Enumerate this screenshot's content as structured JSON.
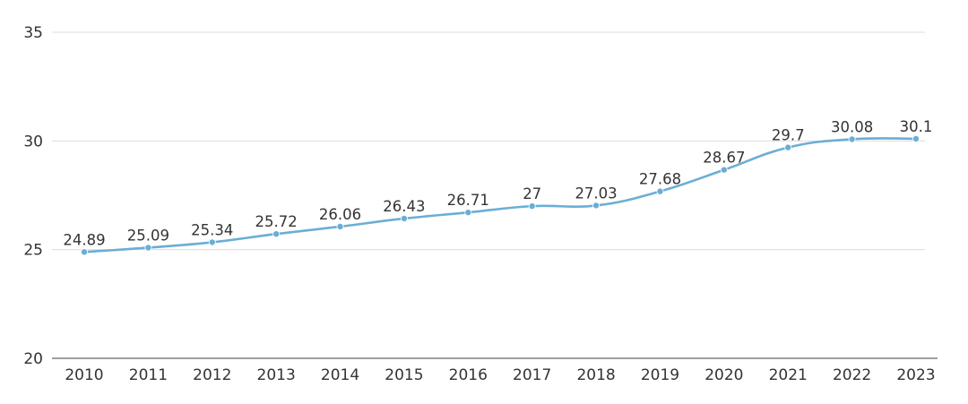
{
  "chart_data": {
    "type": "line",
    "categories": [
      "2010",
      "2011",
      "2012",
      "2013",
      "2014",
      "2015",
      "2016",
      "2017",
      "2018",
      "2019",
      "2020",
      "2021",
      "2022",
      "2023"
    ],
    "values": [
      24.89,
      25.09,
      25.34,
      25.72,
      26.06,
      26.43,
      26.71,
      27,
      27.03,
      27.68,
      28.67,
      29.7,
      30.08,
      30.1
    ],
    "data_labels": [
      "24.89",
      "25.09",
      "25.34",
      "25.72",
      "26.06",
      "26.43",
      "26.71",
      "27",
      "27.03",
      "27.68",
      "28.67",
      "29.7",
      "30.08",
      "30.1"
    ],
    "title": "",
    "xlabel": "",
    "ylabel": "",
    "ylim": [
      20,
      35
    ],
    "yticks": [
      "20",
      "25",
      "30",
      "35"
    ],
    "grid": true,
    "smooth": true,
    "line_color": "#6aaed6"
  }
}
